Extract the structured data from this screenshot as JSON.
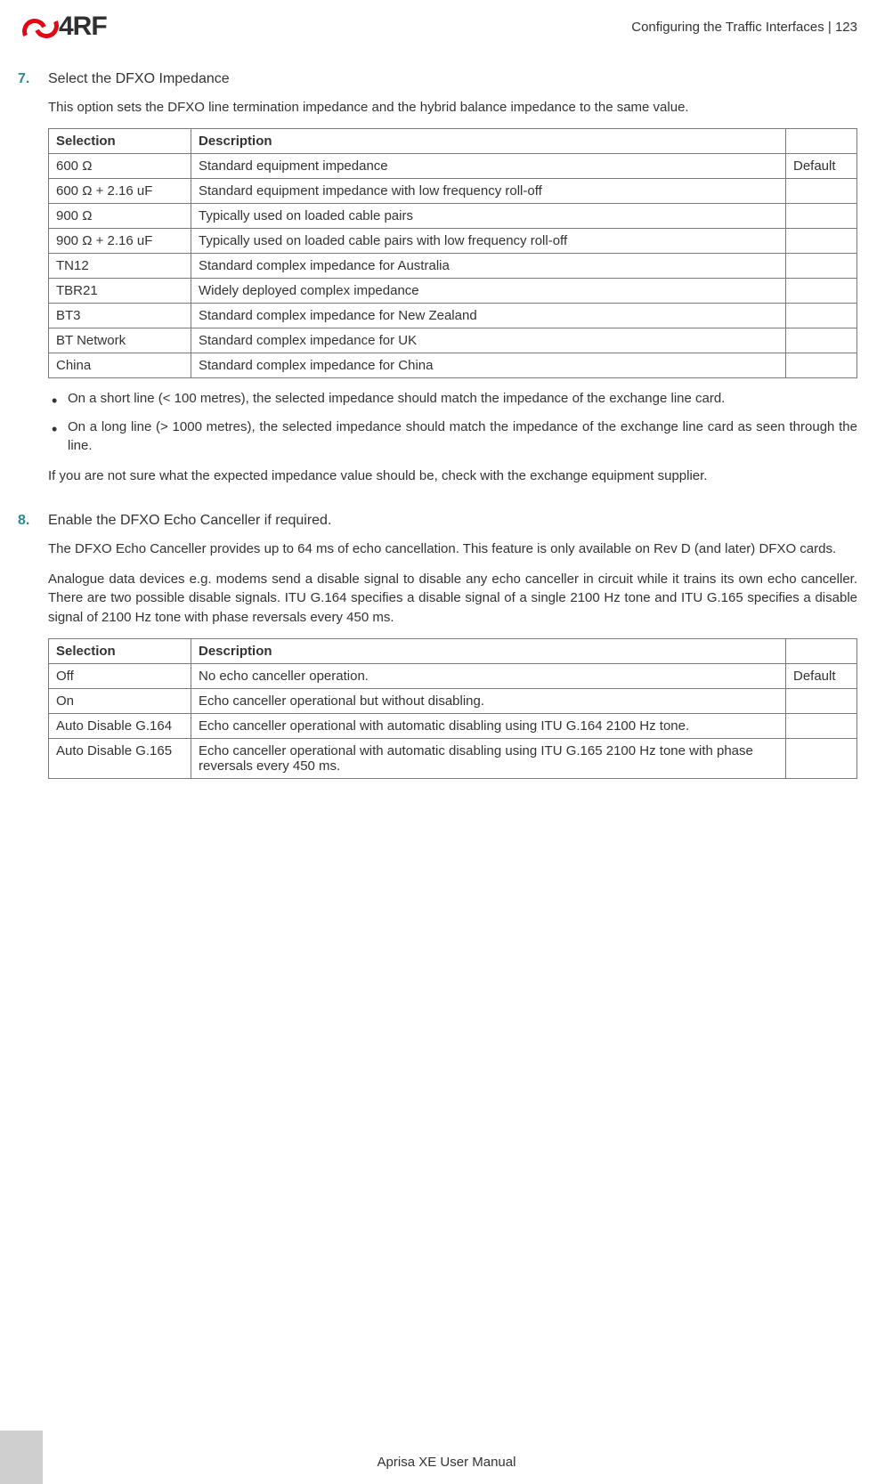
{
  "header": {
    "logo_text": "4RF",
    "logo_color": "#e30613",
    "breadcrumb": "Configuring the Traffic Interfaces  |  123"
  },
  "step7": {
    "number": "7.",
    "title": "Select the DFXO Impedance",
    "intro": "This option sets the DFXO line termination impedance and the hybrid balance impedance to the same value.",
    "table": {
      "columns": [
        "Selection",
        "Description",
        ""
      ],
      "rows": [
        [
          "600 Ω",
          "Standard equipment impedance",
          "Default"
        ],
        [
          "600 Ω + 2.16 uF",
          "Standard equipment impedance with low frequency roll-off",
          ""
        ],
        [
          "900 Ω",
          "Typically used on loaded cable pairs",
          ""
        ],
        [
          "900 Ω + 2.16 uF",
          "Typically used on loaded cable pairs with low frequency roll-off",
          ""
        ],
        [
          "TN12",
          "Standard complex impedance for Australia",
          ""
        ],
        [
          "TBR21",
          "Widely deployed complex impedance",
          ""
        ],
        [
          "BT3",
          "Standard complex impedance for New Zealand",
          ""
        ],
        [
          "BT Network",
          "Standard complex impedance for UK",
          ""
        ],
        [
          "China",
          "Standard complex impedance for China",
          ""
        ]
      ]
    },
    "bullets": [
      "On a short line (< 100 metres), the selected impedance should match the impedance of the exchange line card.",
      "On a long line (> 1000 metres), the selected impedance should match the impedance of the exchange line card as seen through the line."
    ],
    "note": "If you are not sure what the expected impedance value should be, check with the exchange equipment supplier."
  },
  "step8": {
    "number": "8.",
    "title": "Enable the DFXO Echo Canceller if required.",
    "para1": "The DFXO Echo Canceller provides up to 64 ms of echo cancellation. This feature is only available on Rev D (and later) DFXO cards.",
    "para2": "Analogue data devices e.g. modems send a disable signal to disable any echo canceller in circuit while it trains its own echo canceller. There are two possible disable signals. ITU G.164 specifies a disable signal of a single 2100 Hz tone and ITU G.165 specifies a disable signal of 2100 Hz tone with phase reversals every 450 ms.",
    "table": {
      "columns": [
        "Selection",
        "Description",
        ""
      ],
      "rows": [
        [
          "Off",
          "No echo canceller operation.",
          "Default"
        ],
        [
          "On",
          "Echo canceller operational but without disabling.",
          ""
        ],
        [
          "Auto Disable G.164",
          "Echo canceller operational with automatic disabling using ITU G.164 2100 Hz tone.",
          ""
        ],
        [
          "Auto Disable G.165",
          "Echo canceller operational with automatic disabling using ITU G.165 2100 Hz tone with phase reversals every 450 ms.",
          ""
        ]
      ]
    }
  },
  "footer": {
    "text": "Aprisa XE User Manual"
  },
  "colors": {
    "accent": "#298b95",
    "logo_red": "#e30613",
    "border": "#7a7a7a",
    "text": "#333333"
  }
}
